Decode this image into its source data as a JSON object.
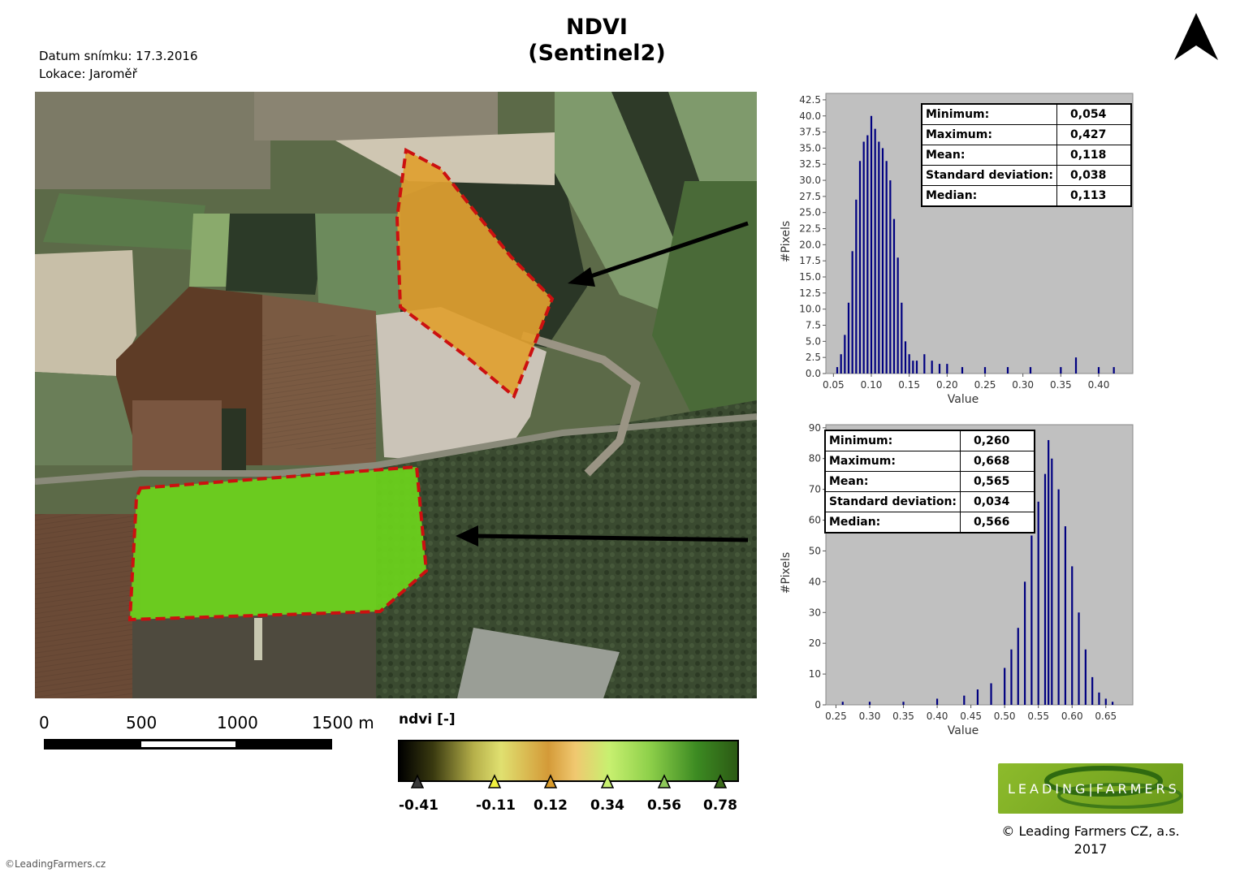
{
  "title": {
    "line1": "NDVI",
    "line2": "(Sentinel2)"
  },
  "meta": {
    "date": "Datum snímku: 17.3.2016",
    "location": "Lokace: Jaroměř"
  },
  "north_arrow": {
    "icon": "north-arrow-icon"
  },
  "map": {
    "fields": [
      {
        "name": "upper-field",
        "fill": "#e0a030",
        "outline": "#cc1010"
      },
      {
        "name": "lower-field",
        "fill": "#6cd41c",
        "outline": "#cc1010"
      }
    ]
  },
  "histograms": [
    {
      "stats": [
        {
          "label": "Minimum:",
          "value": "0,054"
        },
        {
          "label": "Maximum:",
          "value": "0,427"
        },
        {
          "label": "Mean:",
          "value": "0,118"
        },
        {
          "label": "Standard deviation:",
          "value": "0,038"
        },
        {
          "label": "Median:",
          "value": "0,113"
        }
      ],
      "ylabel": "#Pixels",
      "xlabel": "Value",
      "yticks": [
        "42.5",
        "40.0",
        "37.5",
        "35.0",
        "32.5",
        "30.0",
        "27.5",
        "25.0",
        "22.5",
        "20.0",
        "17.5",
        "15.0",
        "12.5",
        "10.0",
        "7.5",
        "5.0",
        "2.5",
        "0.0"
      ],
      "xticks": [
        "0.05",
        "0.10",
        "0.15",
        "0.20",
        "0.25",
        "0.30",
        "0.35",
        "0.40"
      ]
    },
    {
      "stats": [
        {
          "label": "Minimum:",
          "value": "0,260"
        },
        {
          "label": "Maximum:",
          "value": "0,668"
        },
        {
          "label": "Mean:",
          "value": "0,565"
        },
        {
          "label": "Standard deviation:",
          "value": "0,034"
        },
        {
          "label": "Median:",
          "value": "0,566"
        }
      ],
      "ylabel": "#Pixels",
      "xlabel": "Value",
      "yticks": [
        "90",
        "80",
        "70",
        "60",
        "50",
        "40",
        "30",
        "20",
        "10",
        "0"
      ],
      "xticks": [
        "0.25",
        "0.30",
        "0.35",
        "0.40",
        "0.45",
        "0.50",
        "0.55",
        "0.60",
        "0.65"
      ]
    }
  ],
  "chart_data": [
    {
      "type": "bar",
      "ylabel": "#Pixels",
      "xlabel": "Value",
      "xlim": [
        0.04,
        0.445
      ],
      "ylim": [
        0,
        43.5
      ],
      "color": "#000080",
      "bins": [
        [
          0.055,
          1
        ],
        [
          0.06,
          3
        ],
        [
          0.065,
          6
        ],
        [
          0.07,
          11
        ],
        [
          0.075,
          19
        ],
        [
          0.08,
          27
        ],
        [
          0.085,
          33
        ],
        [
          0.09,
          36
        ],
        [
          0.095,
          37
        ],
        [
          0.1,
          40
        ],
        [
          0.105,
          38
        ],
        [
          0.11,
          36
        ],
        [
          0.115,
          35
        ],
        [
          0.12,
          33
        ],
        [
          0.125,
          30
        ],
        [
          0.13,
          24
        ],
        [
          0.135,
          18
        ],
        [
          0.14,
          11
        ],
        [
          0.145,
          5
        ],
        [
          0.15,
          3
        ],
        [
          0.155,
          2
        ],
        [
          0.16,
          2
        ],
        [
          0.17,
          3
        ],
        [
          0.18,
          2
        ],
        [
          0.19,
          1.5
        ],
        [
          0.2,
          1.5
        ],
        [
          0.22,
          1
        ],
        [
          0.25,
          1
        ],
        [
          0.28,
          1
        ],
        [
          0.31,
          1
        ],
        [
          0.35,
          1
        ],
        [
          0.37,
          2.5
        ],
        [
          0.4,
          1
        ],
        [
          0.42,
          1
        ]
      ]
    },
    {
      "type": "bar",
      "ylabel": "#Pixels",
      "xlabel": "Value",
      "xlim": [
        0.235,
        0.69
      ],
      "ylim": [
        0,
        91
      ],
      "color": "#000080",
      "bins": [
        [
          0.26,
          1
        ],
        [
          0.3,
          1
        ],
        [
          0.35,
          1
        ],
        [
          0.4,
          2
        ],
        [
          0.44,
          3
        ],
        [
          0.46,
          5
        ],
        [
          0.48,
          7
        ],
        [
          0.5,
          12
        ],
        [
          0.51,
          18
        ],
        [
          0.52,
          25
        ],
        [
          0.53,
          40
        ],
        [
          0.54,
          55
        ],
        [
          0.55,
          66
        ],
        [
          0.56,
          75
        ],
        [
          0.565,
          86
        ],
        [
          0.57,
          80
        ],
        [
          0.58,
          70
        ],
        [
          0.59,
          58
        ],
        [
          0.6,
          45
        ],
        [
          0.61,
          30
        ],
        [
          0.62,
          18
        ],
        [
          0.63,
          9
        ],
        [
          0.64,
          4
        ],
        [
          0.65,
          2
        ],
        [
          0.66,
          1
        ]
      ]
    }
  ],
  "scalebar": {
    "labels": [
      "0",
      "500",
      "1000",
      "1500 m"
    ]
  },
  "legend": {
    "title": "ndvi [-]",
    "ticks": [
      "-0.41",
      "-0.11",
      "0.12",
      "0.34",
      "0.56",
      "0.78"
    ],
    "tick_colors": [
      "#3a3a3a",
      "#f0f040",
      "#d89a2a",
      "#c8f070",
      "#8ec85a",
      "#3a6a1a"
    ]
  },
  "logo": {
    "text": "LEADING|FARMERS"
  },
  "copyright": {
    "line1": "© Leading Farmers CZ, a.s.",
    "line2": "2017"
  },
  "footer": "©LeadingFarmers.cz"
}
